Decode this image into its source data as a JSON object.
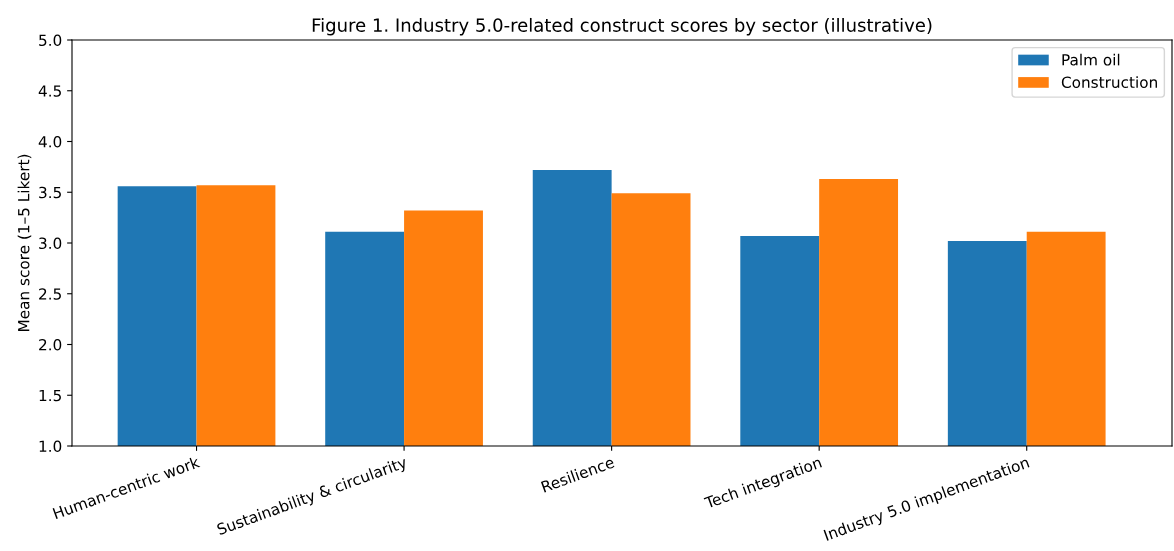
{
  "chart_data": {
    "type": "bar",
    "title": "Figure 1. Industry 5.0-related construct scores by sector (illustrative)",
    "ylabel": "Mean score (1–5 Likert)",
    "categories": [
      "Human-centric work",
      "Sustainability & circularity",
      "Resilience",
      "Tech integration",
      "Industry 5.0 implementation"
    ],
    "series": [
      {
        "name": "Palm oil",
        "color": "#1f77b4",
        "values": [
          3.56,
          3.11,
          3.72,
          3.07,
          3.02
        ]
      },
      {
        "name": "Construction",
        "color": "#ff7f0e",
        "values": [
          3.57,
          3.32,
          3.49,
          3.63,
          3.11
        ]
      }
    ],
    "ylim": [
      1.0,
      5.0
    ],
    "yticks": [
      {
        "value": 1.0,
        "label": "1.0"
      },
      {
        "value": 1.5,
        "label": "1.5"
      },
      {
        "value": 2.0,
        "label": "2.0"
      },
      {
        "value": 2.5,
        "label": "2.5"
      },
      {
        "value": 3.0,
        "label": "3.0"
      },
      {
        "value": 3.5,
        "label": "3.5"
      },
      {
        "value": 4.0,
        "label": "4.0"
      },
      {
        "value": 4.5,
        "label": "4.5"
      },
      {
        "value": 5.0,
        "label": "5.0"
      }
    ],
    "legend": "top right",
    "grid": false
  }
}
